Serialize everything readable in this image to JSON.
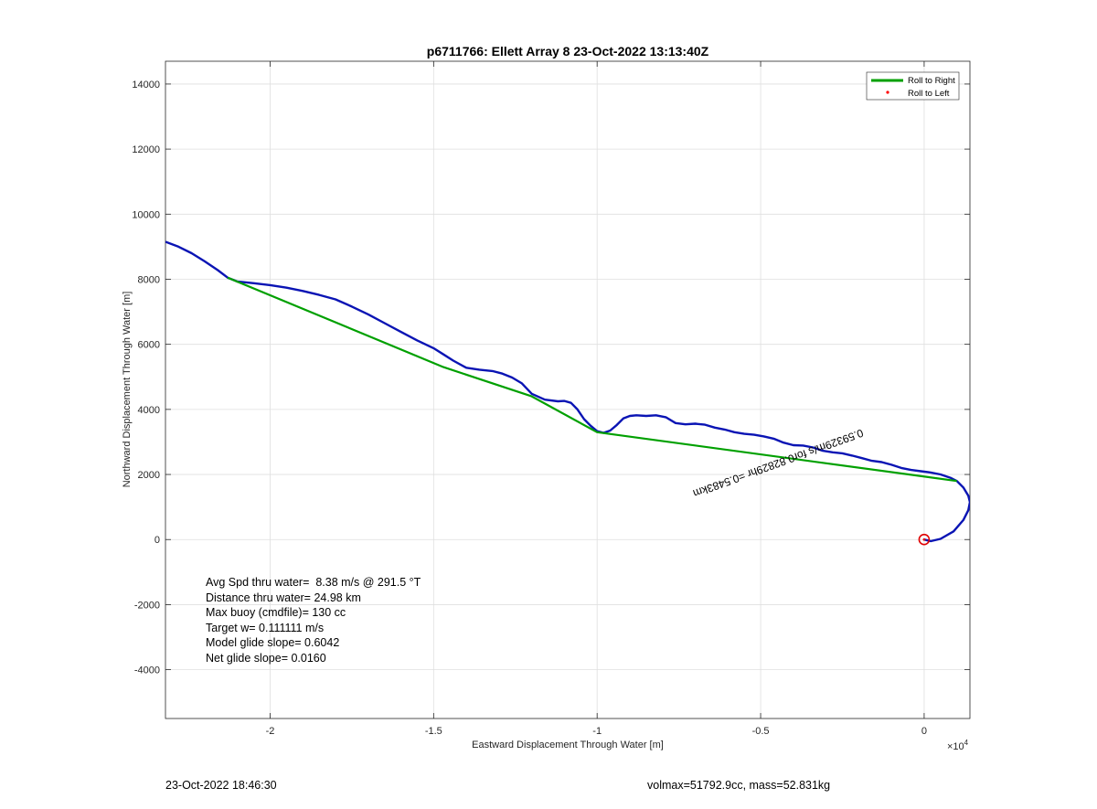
{
  "chart_data": {
    "type": "line",
    "title": "p6711766: Ellett Array 8 23-Oct-2022 13:13:40Z",
    "xlabel": "Eastward Displacement Through Water [m]",
    "ylabel": "Northward Displacement Through Water [m]",
    "x_exponent_label": "×10",
    "x_exponent_power": "4",
    "xlim": [
      -23200,
      1400
    ],
    "ylim": [
      -5500,
      14700
    ],
    "x_ticks": [
      -20000,
      -15000,
      -10000,
      -5000,
      0
    ],
    "x_tick_labels": [
      "-2",
      "-1.5",
      "-1",
      "-0.5",
      "0"
    ],
    "y_ticks": [
      -4000,
      -2000,
      0,
      2000,
      4000,
      6000,
      8000,
      10000,
      12000,
      14000
    ],
    "y_tick_labels": [
      "-4000",
      "-2000",
      "0",
      "2000",
      "4000",
      "6000",
      "8000",
      "10000",
      "12000",
      "14000"
    ],
    "grid": true,
    "legend_position": "top-right",
    "legend": [
      {
        "label": "Roll to Right",
        "color": "#00a000",
        "style": "line"
      },
      {
        "label": "Roll to Left",
        "color": "#ff0000",
        "style": "dot"
      }
    ],
    "series": [
      {
        "name": "track",
        "color": "#0a14b4",
        "x": [
          -23200,
          -22800,
          -22400,
          -22000,
          -21600,
          -21300,
          -21000,
          -20500,
          -20000,
          -19500,
          -19000,
          -18500,
          -18000,
          -17500,
          -17000,
          -16500,
          -16000,
          -15500,
          -15000,
          -14700,
          -14400,
          -14000,
          -13600,
          -13200,
          -12900,
          -12600,
          -12300,
          -12000,
          -11600,
          -11200,
          -11000,
          -10800,
          -10600,
          -10400,
          -10200,
          -10000,
          -9800,
          -9600,
          -9400,
          -9200,
          -9000,
          -8800,
          -8500,
          -8200,
          -7900,
          -7600,
          -7300,
          -7000,
          -6700,
          -6400,
          -6100,
          -5800,
          -5500,
          -5200,
          -4900,
          -4600,
          -4300,
          -4000,
          -3700,
          -3400,
          -3100,
          -2800,
          -2500,
          -2200,
          -1900,
          -1600,
          -1300,
          -1000,
          -700,
          -400,
          -100,
          200,
          500,
          800,
          1000,
          1200,
          1350,
          1400,
          1350,
          1200,
          900,
          500,
          200,
          0
        ],
        "y": [
          9150,
          9000,
          8800,
          8550,
          8280,
          8050,
          7930,
          7880,
          7820,
          7740,
          7640,
          7520,
          7380,
          7160,
          6920,
          6650,
          6380,
          6120,
          5880,
          5690,
          5500,
          5280,
          5220,
          5180,
          5100,
          4980,
          4800,
          4480,
          4300,
          4250,
          4260,
          4200,
          4000,
          3700,
          3500,
          3330,
          3280,
          3350,
          3520,
          3720,
          3800,
          3820,
          3800,
          3820,
          3760,
          3580,
          3540,
          3560,
          3530,
          3440,
          3380,
          3300,
          3250,
          3220,
          3170,
          3100,
          2980,
          2900,
          2890,
          2830,
          2730,
          2680,
          2650,
          2580,
          2500,
          2420,
          2380,
          2300,
          2200,
          2140,
          2100,
          2060,
          2000,
          1900,
          1800,
          1600,
          1350,
          1150,
          900,
          600,
          250,
          20,
          -50,
          0
        ]
      },
      {
        "name": "Roll to Right",
        "color": "#00a000",
        "x": [
          -21300,
          -14700,
          -12000,
          -10000,
          1000
        ],
        "y": [
          8050,
          5300,
          4400,
          3300,
          1800
        ]
      }
    ],
    "marker": {
      "x": 0,
      "y": 0,
      "color": "#e00000"
    },
    "annotation": {
      "text": "0.59329m/s for0.82829hr =0.5483km",
      "x": -4500,
      "y": 2450,
      "rotation": 160
    }
  },
  "stats": {
    "avg_speed": "Avg Spd thru water=  8.38 m/s @ 291.5 °T",
    "distance": "Distance thru water= 24.98 km",
    "max_buoy": "Max buoy (cmdfile)= 130 cc",
    "target_w": "Target w= 0.111111 m/s",
    "model_glide": "Model glide slope= 0.6042",
    "net_glide": "Net glide slope= 0.0160"
  },
  "footer": {
    "date": "23-Oct-2022 18:46:30",
    "mass_info": "volmax=51792.9cc, mass=52.831kg"
  }
}
